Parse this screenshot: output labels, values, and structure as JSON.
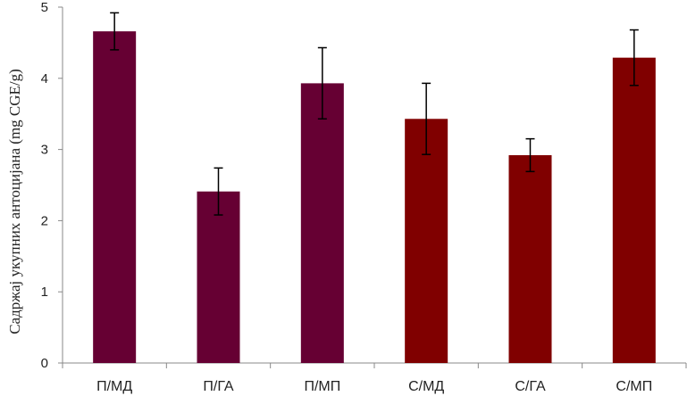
{
  "chart_data": {
    "type": "bar",
    "title": "",
    "xlabel": "",
    "ylabel": "Садржај укупних антоцијана (mg CGE/g)",
    "ylim": [
      0,
      5
    ],
    "yticks": [
      0,
      1,
      2,
      3,
      4,
      5
    ],
    "grid": false,
    "legend": "none",
    "categories": [
      "П/МД",
      "П/ГА",
      "П/МП",
      "С/МД",
      "С/ГА",
      "С/МП"
    ],
    "values": [
      4.66,
      2.41,
      3.93,
      3.43,
      2.92,
      4.29
    ],
    "errors": [
      0.26,
      0.33,
      0.5,
      0.5,
      0.23,
      0.39
    ],
    "colors": [
      "#660033",
      "#660033",
      "#660033",
      "#800000",
      "#800000",
      "#800000"
    ]
  }
}
